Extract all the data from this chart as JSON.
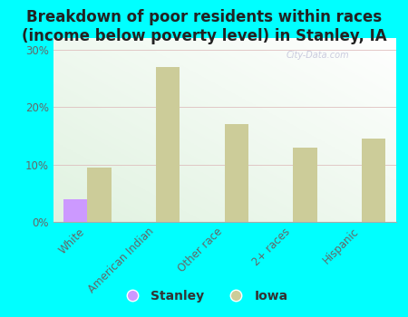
{
  "title": "Breakdown of poor residents within races\n(income below poverty level) in Stanley, IA",
  "categories": [
    "White",
    "American Indian",
    "Other race",
    "2+ races",
    "Hispanic"
  ],
  "stanley_values": [
    4.0,
    0,
    0,
    0,
    0
  ],
  "iowa_values": [
    9.5,
    27.0,
    17.0,
    13.0,
    14.5
  ],
  "stanley_color": "#cc99ff",
  "iowa_color": "#cccc99",
  "bg_color": "#00ffff",
  "yticks": [
    0,
    10,
    20,
    30
  ],
  "ylim": [
    0,
    32
  ],
  "bar_width": 0.35,
  "title_fontsize": 12,
  "tick_fontsize": 8.5,
  "legend_fontsize": 10,
  "watermark": "City-Data.com"
}
